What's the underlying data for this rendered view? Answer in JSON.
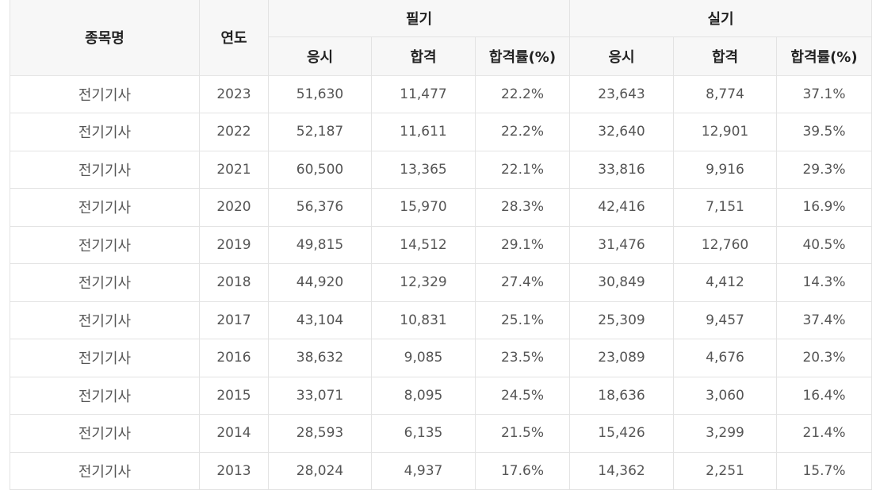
{
  "headers": {
    "name": "종목명",
    "year": "연도",
    "written": "필기",
    "practical": "실기",
    "sub": [
      "응시",
      "합격",
      "합격률(%)",
      "응시",
      "합격",
      "합격률(%)"
    ]
  },
  "rows": [
    {
      "name": "전기기사",
      "year": "2023",
      "w_apply": "51,630",
      "w_pass": "11,477",
      "w_rate": "22.2%",
      "p_apply": "23,643",
      "p_pass": "8,774",
      "p_rate": "37.1%"
    },
    {
      "name": "전기기사",
      "year": "2022",
      "w_apply": "52,187",
      "w_pass": "11,611",
      "w_rate": "22.2%",
      "p_apply": "32,640",
      "p_pass": "12,901",
      "p_rate": "39.5%"
    },
    {
      "name": "전기기사",
      "year": "2021",
      "w_apply": "60,500",
      "w_pass": "13,365",
      "w_rate": "22.1%",
      "p_apply": "33,816",
      "p_pass": "9,916",
      "p_rate": "29.3%"
    },
    {
      "name": "전기기사",
      "year": "2020",
      "w_apply": "56,376",
      "w_pass": "15,970",
      "w_rate": "28.3%",
      "p_apply": "42,416",
      "p_pass": "7,151",
      "p_rate": "16.9%"
    },
    {
      "name": "전기기사",
      "year": "2019",
      "w_apply": "49,815",
      "w_pass": "14,512",
      "w_rate": "29.1%",
      "p_apply": "31,476",
      "p_pass": "12,760",
      "p_rate": "40.5%"
    },
    {
      "name": "전기기사",
      "year": "2018",
      "w_apply": "44,920",
      "w_pass": "12,329",
      "w_rate": "27.4%",
      "p_apply": "30,849",
      "p_pass": "4,412",
      "p_rate": "14.3%"
    },
    {
      "name": "전기기사",
      "year": "2017",
      "w_apply": "43,104",
      "w_pass": "10,831",
      "w_rate": "25.1%",
      "p_apply": "25,309",
      "p_pass": "9,457",
      "p_rate": "37.4%"
    },
    {
      "name": "전기기사",
      "year": "2016",
      "w_apply": "38,632",
      "w_pass": "9,085",
      "w_rate": "23.5%",
      "p_apply": "23,089",
      "p_pass": "4,676",
      "p_rate": "20.3%"
    },
    {
      "name": "전기기사",
      "year": "2015",
      "w_apply": "33,071",
      "w_pass": "8,095",
      "w_rate": "24.5%",
      "p_apply": "18,636",
      "p_pass": "3,060",
      "p_rate": "16.4%"
    },
    {
      "name": "전기기사",
      "year": "2014",
      "w_apply": "28,593",
      "w_pass": "6,135",
      "w_rate": "21.5%",
      "p_apply": "15,426",
      "p_pass": "3,299",
      "p_rate": "21.4%"
    },
    {
      "name": "전기기사",
      "year": "2013",
      "w_apply": "28,024",
      "w_pass": "4,937",
      "w_rate": "17.6%",
      "p_apply": "14,362",
      "p_pass": "2,251",
      "p_rate": "15.7%"
    }
  ]
}
